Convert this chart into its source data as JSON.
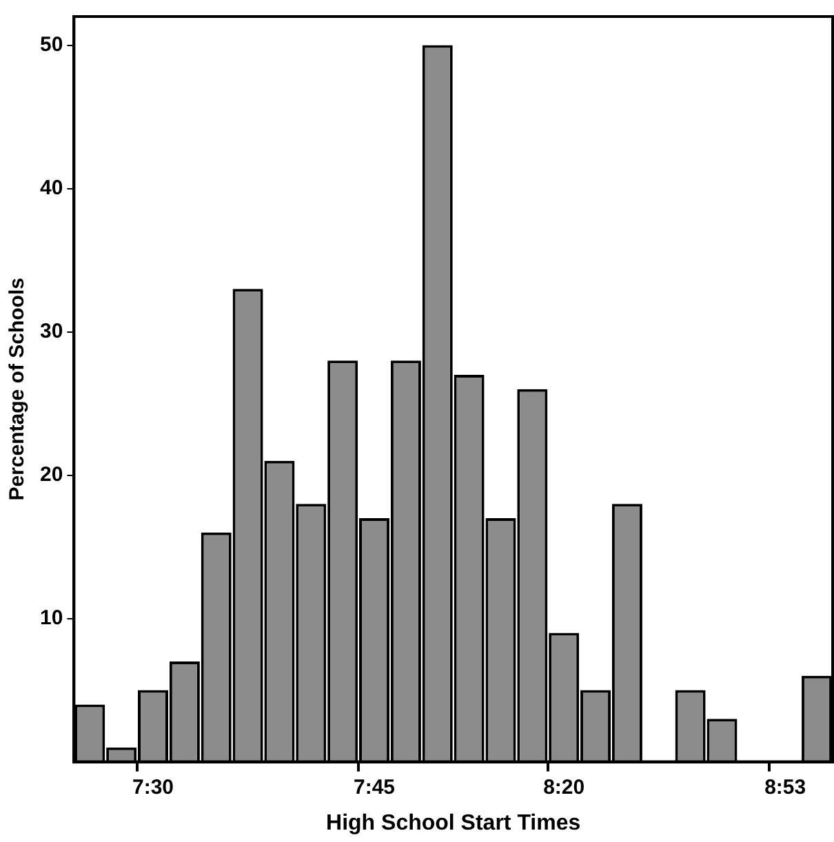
{
  "chart_data": {
    "type": "bar",
    "xlabel": "High School Start Times",
    "ylabel": "Percentage of Schools",
    "categories": [
      null,
      null,
      "7:30",
      null,
      null,
      null,
      null,
      null,
      null,
      "7:45",
      null,
      null,
      null,
      null,
      null,
      "8:20",
      null,
      null,
      null,
      null,
      null,
      null,
      "8:53",
      null
    ],
    "values": [
      4,
      1,
      5,
      7,
      16,
      33,
      21,
      18,
      28,
      17,
      28,
      50,
      27,
      17,
      26,
      9,
      5,
      18,
      0,
      5,
      3,
      0,
      0,
      6
    ],
    "color": "#8c8c8c",
    "ylim": [
      0,
      52
    ],
    "yticks": [
      10,
      20,
      30,
      40,
      50
    ]
  }
}
